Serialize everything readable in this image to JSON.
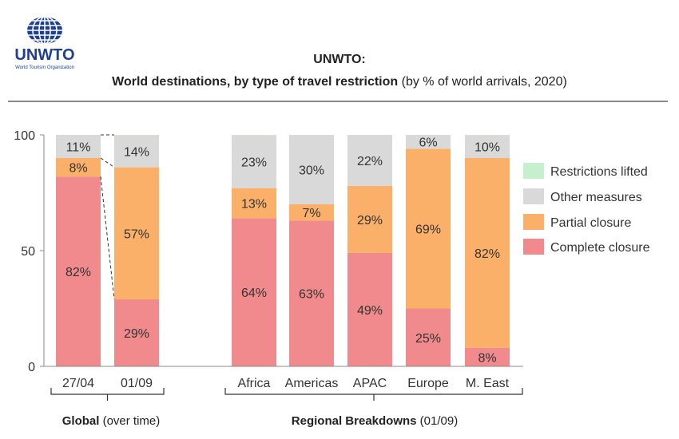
{
  "header": {
    "logo_text": "UNWTO",
    "logo_subtext": "World Tourism Organization",
    "title_line1": "UNWTO:",
    "title_line2_bold": "World destinations, by type of travel restriction",
    "title_line2_rest": " (by % of world arrivals, 2020)"
  },
  "colors": {
    "complete": "#f08a8d",
    "partial": "#fbb06a",
    "other": "#d9d9d9",
    "lifted": "#c6efce"
  },
  "chart_data": {
    "type": "bar",
    "stacked": true,
    "ylim": [
      0,
      100
    ],
    "yticks": [
      "0",
      "50",
      "100"
    ],
    "categories": [
      "27/04",
      "01/09",
      "Africa",
      "Americas",
      "APAC",
      "Europe",
      "M. East"
    ],
    "series": [
      {
        "name": "Complete closure",
        "values": [
          82,
          29,
          64,
          63,
          49,
          25,
          8
        ],
        "labels": [
          "82%",
          "29%",
          "64%",
          "63%",
          "49%",
          "25%",
          "8%"
        ]
      },
      {
        "name": "Partial closure",
        "values": [
          8,
          57,
          13,
          7,
          29,
          69,
          82
        ],
        "labels": [
          "8%",
          "57%",
          "13%",
          "7%",
          "29%",
          "69%",
          "82%"
        ]
      },
      {
        "name": "Other measures",
        "values": [
          11,
          14,
          23,
          30,
          22,
          6,
          10
        ],
        "labels": [
          "11%",
          "14%",
          "23%",
          "30%",
          "22%",
          "6%",
          "10%"
        ]
      },
      {
        "name": "Restrictions lifted",
        "values": [
          0,
          1,
          0.5,
          0,
          0,
          0,
          1
        ],
        "labels": [
          "",
          "",
          "",
          "",
          "",
          "",
          ""
        ]
      }
    ],
    "legend_order": [
      "Restrictions lifted",
      "Other measures",
      "Partial closure",
      "Complete closure"
    ],
    "legend_position": "right",
    "groups": [
      {
        "bold": "Global",
        "rest": " (over time)"
      },
      {
        "bold": "Regional Breakdowns",
        "rest": " (01/09)"
      }
    ]
  }
}
